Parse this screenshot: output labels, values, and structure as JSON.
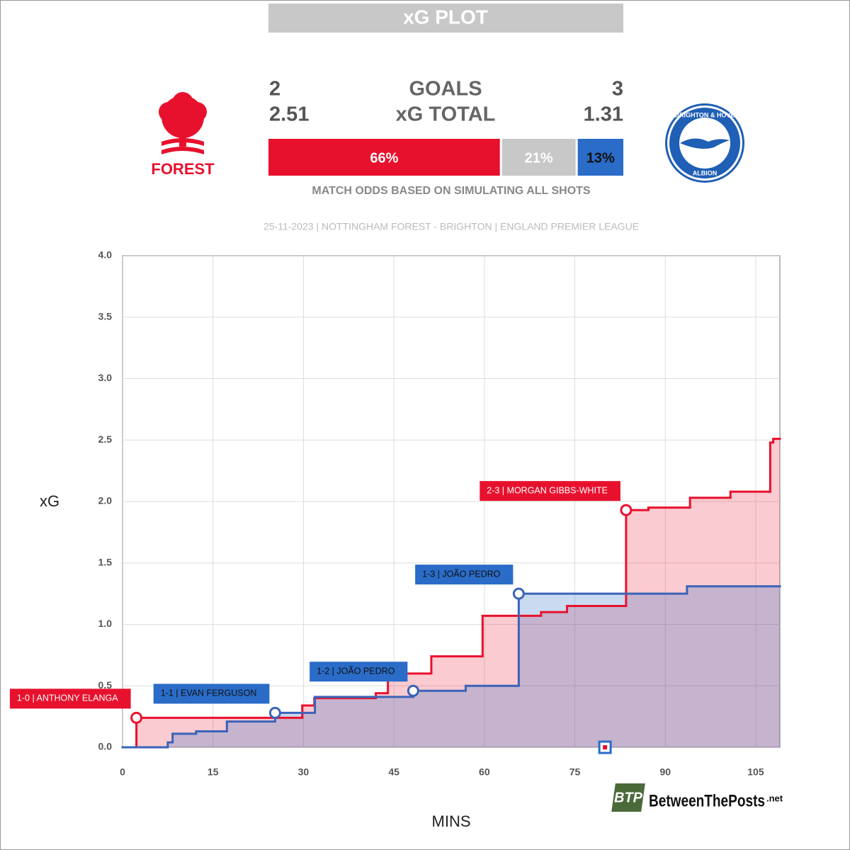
{
  "header": {
    "title": "xG PLOT",
    "home": {
      "goals": 2,
      "xg": "2.51",
      "logo_text": "FOREST"
    },
    "away": {
      "goals": 3,
      "xg": "1.31",
      "logo_text": [
        "BRIGHTON & HOVE",
        "ALBION"
      ]
    },
    "goals_label": "GOALS",
    "xg_label": "xG TOTAL",
    "odds": [
      {
        "value": 66,
        "label": "66%",
        "color": "#e8112d"
      },
      {
        "value": 21,
        "label": "21%",
        "color": "#c8c8c8"
      },
      {
        "value": 13,
        "label": "13%",
        "color": "#2a6cc8"
      }
    ],
    "odds_caption": "MATCH ODDS BASED ON SIMULATING ALL SHOTS",
    "match_info": "25-11-2023 | NOTTINGHAM FOREST - BRIGHTON | ENGLAND PREMIER LEAGUE"
  },
  "chart_data": {
    "type": "step",
    "xlabel": "MINS",
    "ylabel": "xG",
    "xlim": [
      0,
      109
    ],
    "ylim": [
      0,
      4
    ],
    "xticks": [
      0,
      15,
      30,
      45,
      60,
      75,
      90,
      105
    ],
    "yticks": [
      {
        "value": 0,
        "label": "0.0"
      },
      {
        "value": 0.5,
        "label": "0.5"
      },
      {
        "value": 1,
        "label": "1.0"
      },
      {
        "value": 1.5,
        "label": "1.5"
      },
      {
        "value": 2,
        "label": "2.0"
      },
      {
        "value": 2.5,
        "label": "2.5"
      },
      {
        "value": 3,
        "label": "3.0"
      },
      {
        "value": 3.5,
        "label": "3.5"
      },
      {
        "value": 4,
        "label": "4.0"
      }
    ],
    "grid": true,
    "series": [
      {
        "name": "Nottingham Forest",
        "color": "#e8112d",
        "fill": "rgba(232,17,45,0.22)",
        "x": [
          0,
          2.3,
          29.8,
          31.8,
          42,
          44,
          51.2,
          59.7,
          69.4,
          73.7,
          83.5,
          87.2,
          94.1,
          100.8,
          107.4,
          107.9
        ],
        "values": [
          0,
          0.24,
          0.34,
          0.4,
          0.44,
          0.6,
          0.74,
          1.07,
          1.1,
          1.15,
          1.93,
          1.95,
          2.03,
          2.08,
          2.48,
          2.51
        ],
        "goals": [
          {
            "x": 2.3,
            "y": 0.24,
            "label": "1-0 | ANTHONY ELANGA"
          },
          {
            "x": 83.5,
            "y": 1.93,
            "label": "2-3 | MORGAN GIBBS-WHITE"
          }
        ]
      },
      {
        "name": "Brighton",
        "color": "#3a63b8",
        "fill": "rgba(42,108,200,0.25)",
        "x": [
          0,
          7.5,
          8.3,
          12.2,
          17.3,
          25.3,
          31.9,
          48.2,
          56.9,
          65.7,
          93.6
        ],
        "values": [
          0,
          0.04,
          0.11,
          0.13,
          0.21,
          0.28,
          0.41,
          0.46,
          0.5,
          1.25,
          1.31
        ],
        "goals": [
          {
            "x": 25.3,
            "y": 0.28,
            "label": "1-1 | EVAN FERGUSON"
          },
          {
            "x": 48.2,
            "y": 0.46,
            "label": "1-2 | JOÃO PEDRO"
          },
          {
            "x": 65.7,
            "y": 1.25,
            "label": "1-3 | JOÃO PEDRO"
          }
        ]
      }
    ],
    "other_events": [
      {
        "x": 80,
        "y": 0
      }
    ]
  },
  "watermark": {
    "short": "BTP",
    "name": "BetweenThePosts",
    "suffix": ".net"
  }
}
